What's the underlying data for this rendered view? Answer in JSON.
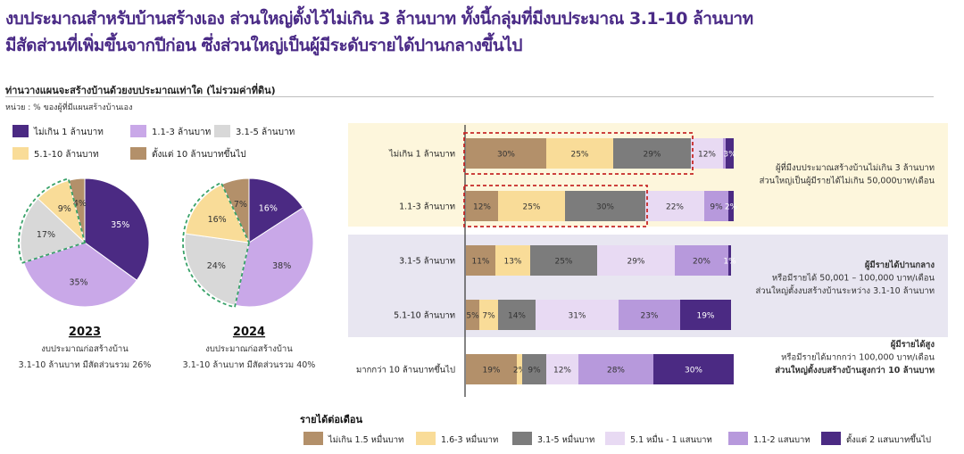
{
  "headline": {
    "line1": "งบประมาณสำหรับบ้านสร้างเอง ส่วนใหญ่ตั้งไว้ไม่เกิน 3 ล้านบาท ทั้งนี้กลุ่มที่มีงบประมาณ 3.1-10 ล้านบาท",
    "line2": "มีสัดส่วนที่เพิ่มขึ้นจากปีก่อน ซึ่งส่วนใหญ่เป็นผู้มีระดับรายได้ปานกลางขึ้นไป"
  },
  "subtitle": "ท่านวางแผนจะสร้างบ้านด้วยงบประมาณเท่าใด (ไม่รวมค่าที่ดิน)",
  "unit": "หน่วย : % ของผู้ที่มีแผนสร้างบ้านเอง",
  "colors": {
    "budget": [
      "#4b2a83",
      "#c9a8e8",
      "#d8d8d8",
      "#f9dc98",
      "#b3906a"
    ],
    "income": [
      "#b3906a",
      "#f9dc98",
      "#7c7c7c",
      "#e8daf3",
      "#b799dc",
      "#4b2a83"
    ],
    "highlight_red": "#c62828",
    "highlight_green": "#3aa26a",
    "band_yellow": "#fdf6dc",
    "band_lavender": "#e8e6f1"
  },
  "chart_data": [
    {
      "type": "pie",
      "legend": {
        "placement": "top-left",
        "entries": [
          "ไม่เกิน 1 ล้านบาท",
          "1.1-3 ล้านบาท",
          "3.1-5 ล้านบาท",
          "5.1-10 ล้านบาท",
          "ตั้งแต่ 10 ล้านบาทขึ้นไป"
        ]
      },
      "categories": [
        "ไม่เกิน 1 ล้านบาท",
        "1.1-3 ล้านบาท",
        "3.1-5 ล้านบาท",
        "5.1-10 ล้านบาท",
        "ตั้งแต่ 10 ล้านบาทขึ้นไป"
      ],
      "pies": [
        {
          "year": "2023",
          "values": [
            35,
            35,
            17,
            9,
            4
          ],
          "labels": [
            "35%",
            "35%",
            "17%",
            "9%",
            "4%"
          ],
          "caption": [
            "งบประมาณก่อสร้างบ้าน",
            "3.1-10 ล้านบาท มีสัดส่วนรวม 26%"
          ]
        },
        {
          "year": "2024",
          "values": [
            16,
            38,
            24,
            16,
            7
          ],
          "labels": [
            "16%",
            "38%",
            "24%",
            "16%",
            "7%"
          ],
          "caption": [
            "งบประมาณก่อสร้างบ้าน",
            "3.1-10 ล้านบาท มีสัดส่วนรวม 40%"
          ]
        }
      ]
    },
    {
      "type": "bar",
      "orientation": "horizontal",
      "stacked": true,
      "categories": [
        "ไม่เกิน 1 ล้านบาท",
        "1.1-3 ล้านบาท",
        "3.1-5 ล้านบาท",
        "5.1-10 ล้านบาท",
        "มากกว่า 10 ล้านบาทขึ้นไป"
      ],
      "series": [
        {
          "name": "ไม่เกิน 1.5 หมื่นบาท",
          "values": [
            30,
            12,
            11,
            5,
            19
          ]
        },
        {
          "name": "1.6-3 หมื่นบาท",
          "values": [
            25,
            25,
            13,
            7,
            2
          ]
        },
        {
          "name": "3.1-5 หมื่นบาท",
          "values": [
            29,
            30,
            25,
            14,
            9
          ]
        },
        {
          "name": "5.1 หมื่น - 1 แสนบาท",
          "values": [
            12,
            22,
            29,
            31,
            12
          ]
        },
        {
          "name": "1.1-2 แสนบาท",
          "values": [
            1,
            9,
            20,
            23,
            28
          ]
        },
        {
          "name": "ตั้งแต่ 2 แสนบาทขึ้นไป",
          "values": [
            3,
            2,
            1,
            19,
            30
          ]
        }
      ],
      "labels": [
        [
          "30%",
          "25%",
          "29%",
          "12%",
          "",
          "3%"
        ],
        [
          "12%",
          "25%",
          "30%",
          "22%",
          "9%",
          "2%"
        ],
        [
          "11%",
          "13%",
          "25%",
          "29%",
          "20%",
          "1%"
        ],
        [
          "5%",
          "7%",
          "14%",
          "31%",
          "23%",
          "19%"
        ],
        [
          "19%",
          "2%",
          "9%",
          "12%",
          "28%",
          "30%"
        ]
      ],
      "legend": {
        "title": "รายได้ต่อเดือน",
        "placement": "bottom",
        "entries": [
          "ไม่เกิน 1.5 หมื่นบาท",
          "1.6-3 หมื่นบาท",
          "3.1-5 หมื่นบาท",
          "5.1 หมื่น - 1 แสนบาท",
          "1.1-2 แสนบาท",
          "ตั้งแต่ 2 แสนบาทขึ้นไป"
        ]
      },
      "annotations": [
        {
          "lines": [
            "ผู้ที่มีงบประมาณสร้างบ้านไม่เกิน 3 ล้านบาท",
            "ส่วนใหญ่เป็นผู้มีรายได้ไม่เกิน 50,000บาท/เดือน"
          ],
          "bold": [
            false,
            false
          ]
        },
        {
          "lines": [
            "ผู้มีรายได้ปานกลาง",
            "หรือมีรายได้ 50,001 – 100,000 บาท/เดือน",
            "ส่วนใหญ่ตั้งงบสร้างบ้านระหว่าง 3.1-10 ล้านบาท"
          ],
          "bold": [
            true,
            false,
            false
          ]
        },
        {
          "lines": [
            "ผู้มีรายได้สูง",
            "หรือมีรายได้มากกว่า 100,000 บาท/เดือน",
            "ส่วนใหญ่ตั้งงบสร้างบ้านสูงกว่า 10 ล้านบาท"
          ],
          "bold": [
            true,
            false,
            true
          ]
        }
      ]
    }
  ]
}
